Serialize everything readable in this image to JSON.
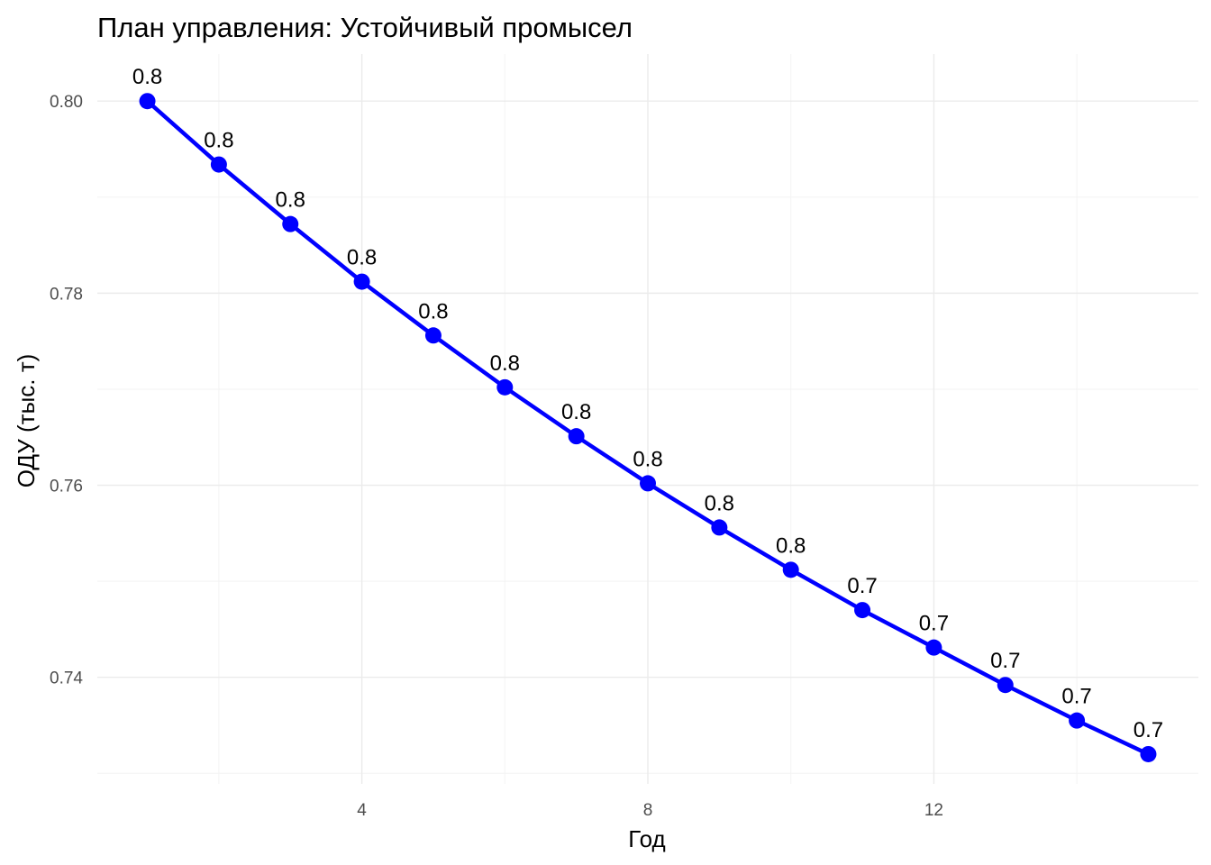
{
  "chart_data": {
    "type": "line",
    "title": "План управления: Устойчивый промысел",
    "xlabel": "Год",
    "ylabel": "ОДУ (тыс. т)",
    "x": [
      1,
      2,
      3,
      4,
      5,
      6,
      7,
      8,
      9,
      10,
      11,
      12,
      13,
      14,
      15
    ],
    "y": [
      0.8,
      0.7934,
      0.7872,
      0.7812,
      0.7756,
      0.7702,
      0.7651,
      0.7602,
      0.7556,
      0.7512,
      0.747,
      0.7431,
      0.7392,
      0.7355,
      0.732
    ],
    "point_labels": [
      "0.8",
      "0.8",
      "0.8",
      "0.8",
      "0.8",
      "0.8",
      "0.8",
      "0.8",
      "0.8",
      "0.8",
      "0.7",
      "0.7",
      "0.7",
      "0.7",
      "0.7"
    ],
    "x_ticks": [
      "4",
      "8",
      "12"
    ],
    "x_tick_values": [
      4,
      8,
      12
    ],
    "y_ticks": [
      "0.74",
      "0.76",
      "0.78",
      "0.80"
    ],
    "y_tick_values": [
      0.74,
      0.76,
      0.78,
      0.8
    ],
    "xlim": [
      0.3,
      15.7
    ],
    "ylim": [
      0.7289,
      0.8049
    ],
    "grid": true,
    "line_color": "#0000FF",
    "point_color": "#0000FF",
    "label_color": "#000000"
  }
}
